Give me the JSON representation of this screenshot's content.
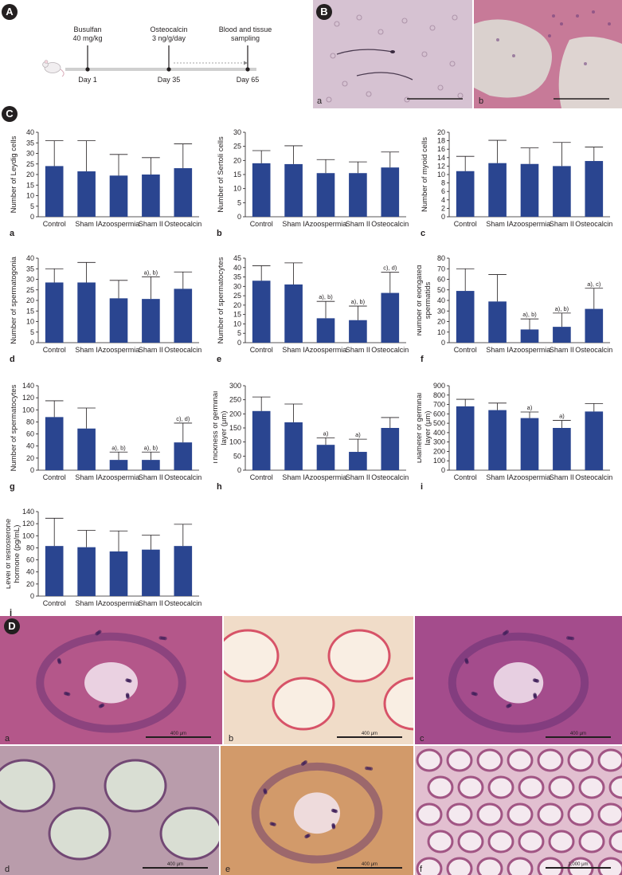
{
  "panel_letters": [
    "A",
    "B",
    "C",
    "D"
  ],
  "timeline": {
    "events": [
      {
        "treatment": "Busulfan",
        "dose": "40 mg/kg",
        "day": "Day 1"
      },
      {
        "treatment": "Osteocalcin",
        "dose": "3 ng/g/day",
        "day": "Day 35"
      },
      {
        "treatment": "Blood and tissue",
        "dose": "sampling",
        "day": "Day 65"
      }
    ]
  },
  "micrographs_b": [
    {
      "letter": "a",
      "color": "#d6c2d2"
    },
    {
      "letter": "b",
      "color": "#c77a98"
    }
  ],
  "micrographs_d": [
    {
      "letter": "a",
      "scale": "400 μm",
      "color": "#b4578a"
    },
    {
      "letter": "b",
      "scale": "400 μm",
      "color": "#f0dcc8"
    },
    {
      "letter": "c",
      "scale": "400 μm",
      "color": "#a44c8c"
    },
    {
      "letter": "d",
      "scale": "400 μm",
      "color": "#b99cab"
    },
    {
      "letter": "e",
      "scale": "400 μm",
      "color": "#d29a6a"
    },
    {
      "letter": "f",
      "scale": "1,000 μm",
      "color": "#e2bfd0"
    }
  ],
  "chart_data": [
    {
      "type": "bar",
      "letter": "a",
      "ylabel": "Number of Leydig cells",
      "categories": [
        "Control",
        "Sham I",
        "Azoospermia",
        "Sham II",
        "Osteocalcin"
      ],
      "values": [
        24,
        21.5,
        19.5,
        20,
        23
      ],
      "errors": [
        12,
        14.5,
        10,
        8,
        11.5
      ],
      "ylim": [
        0,
        40
      ],
      "yticks": [
        0,
        5,
        10,
        15,
        20,
        25,
        30,
        35,
        40
      ],
      "annotations": [
        "",
        "",
        "",
        "",
        ""
      ],
      "bar_color": "#2a4590"
    },
    {
      "type": "bar",
      "letter": "b",
      "ylabel": "Number of Sertoli cells",
      "categories": [
        "Control",
        "Sham I",
        "Azoospermia",
        "Sham II",
        "Osteocalcin"
      ],
      "values": [
        19,
        18.7,
        15.5,
        15.5,
        17.5
      ],
      "errors": [
        4.5,
        6.5,
        4.8,
        4,
        5.5
      ],
      "ylim": [
        0,
        30
      ],
      "yticks": [
        0,
        5,
        10,
        15,
        20,
        25,
        30
      ],
      "annotations": [
        "",
        "",
        "",
        "",
        ""
      ],
      "bar_color": "#2a4590"
    },
    {
      "type": "bar",
      "letter": "c",
      "ylabel": "Number of myoid cells",
      "categories": [
        "Control",
        "Sham I",
        "Azoospermia",
        "Sham II",
        "Osteocalcin"
      ],
      "values": [
        10.8,
        12.7,
        12.5,
        12,
        13.2
      ],
      "errors": [
        3.5,
        5.4,
        3.8,
        5.6,
        3.3
      ],
      "ylim": [
        0,
        20
      ],
      "yticks": [
        0,
        2,
        4,
        6,
        8,
        10,
        12,
        14,
        16,
        18,
        20
      ],
      "annotations": [
        "",
        "",
        "",
        "",
        ""
      ],
      "bar_color": "#2a4590"
    },
    {
      "type": "bar",
      "letter": "d",
      "ylabel": "Number of spermatogonia",
      "categories": [
        "Control",
        "Sham I",
        "Azoospermia",
        "Sham II",
        "Osteocalcin"
      ],
      "values": [
        28.5,
        28.5,
        21,
        20.7,
        25.5
      ],
      "errors": [
        6.5,
        9.5,
        8.5,
        10.5,
        8
      ],
      "ylim": [
        0,
        40
      ],
      "yticks": [
        0,
        5,
        10,
        15,
        20,
        25,
        30,
        35,
        40
      ],
      "annotations": [
        "",
        "",
        "",
        "a), b)",
        ""
      ],
      "bar_color": "#2a4590"
    },
    {
      "type": "bar",
      "letter": "e",
      "ylabel": "Number of spermatocytes",
      "categories": [
        "Control",
        "Sham I",
        "Azoospermia",
        "Sham II",
        "Osteocalcin"
      ],
      "values": [
        33,
        31,
        13,
        12,
        26.5
      ],
      "errors": [
        8,
        11.5,
        9,
        7.5,
        11
      ],
      "ylim": [
        0,
        45
      ],
      "yticks": [
        0,
        5,
        10,
        15,
        20,
        25,
        30,
        35,
        40,
        45
      ],
      "annotations": [
        "",
        "",
        "a), b)",
        "a), b)",
        "c), d)"
      ],
      "bar_color": "#2a4590"
    },
    {
      "type": "bar",
      "letter": "f",
      "ylabel": "Number of elongated spermatids",
      "categories": [
        "Control",
        "Sham I",
        "Azoospermia",
        "Sham II",
        "Osteocalcin"
      ],
      "values": [
        49,
        39,
        12.5,
        15,
        32
      ],
      "errors": [
        21,
        25.5,
        10,
        13,
        19.5
      ],
      "ylim": [
        0,
        80
      ],
      "yticks": [
        0,
        10,
        20,
        30,
        40,
        50,
        60,
        70,
        80
      ],
      "annotations": [
        "",
        "",
        "a), b)",
        "a), b)",
        "a), c)"
      ],
      "bar_color": "#2a4590"
    },
    {
      "type": "bar",
      "letter": "g",
      "ylabel": "Number of spermatocytes",
      "categories": [
        "Control",
        "Sham I",
        "Azoospermia",
        "Sham II",
        "Osteocalcin"
      ],
      "values": [
        88,
        69,
        17,
        17,
        46
      ],
      "errors": [
        27,
        34,
        13,
        13,
        32
      ],
      "ylim": [
        0,
        140
      ],
      "yticks": [
        0,
        20,
        40,
        60,
        80,
        100,
        120,
        140
      ],
      "annotations": [
        "",
        "",
        "a), b)",
        "a), b)",
        "c), d)"
      ],
      "bar_color": "#2a4590"
    },
    {
      "type": "bar",
      "letter": "h",
      "ylabel": "Thickness of germinal layer (μm)",
      "categories": [
        "Control",
        "Sham I",
        "Azoospermia",
        "Sham II",
        "Osteocalcin"
      ],
      "values": [
        210,
        170,
        90,
        65,
        150
      ],
      "errors": [
        50,
        65,
        25,
        45,
        37
      ],
      "ylim": [
        0,
        300
      ],
      "yticks": [
        0,
        50,
        100,
        150,
        200,
        250,
        300
      ],
      "annotations": [
        "",
        "",
        "a)",
        "a)",
        ""
      ],
      "bar_color": "#2a4590"
    },
    {
      "type": "bar",
      "letter": "i",
      "ylabel": "Diameter of germinal layer (μm)",
      "categories": [
        "Control",
        "Sham I",
        "Azoospermia",
        "Sham II",
        "Osteocalcin"
      ],
      "values": [
        680,
        640,
        555,
        450,
        625
      ],
      "errors": [
        75,
        75,
        65,
        80,
        85
      ],
      "ylim": [
        0,
        900
      ],
      "yticks": [
        0,
        100,
        200,
        300,
        400,
        500,
        600,
        700,
        800,
        900
      ],
      "annotations": [
        "",
        "",
        "a)",
        "a)",
        ""
      ],
      "bar_color": "#2a4590"
    },
    {
      "type": "bar",
      "letter": "j",
      "ylabel": "Level of testosterone hormone (pg/mL)",
      "categories": [
        "Control",
        "Sham I",
        "Azoospermia",
        "Sham II",
        "Osteocalcin"
      ],
      "values": [
        83,
        81,
        74,
        77,
        83
      ],
      "errors": [
        46,
        28,
        34,
        24,
        36
      ],
      "ylim": [
        0,
        140
      ],
      "yticks": [
        0,
        20,
        40,
        60,
        80,
        100,
        120,
        140
      ],
      "annotations": [
        "",
        "",
        "",
        "",
        ""
      ],
      "bar_color": "#2a4590"
    }
  ]
}
